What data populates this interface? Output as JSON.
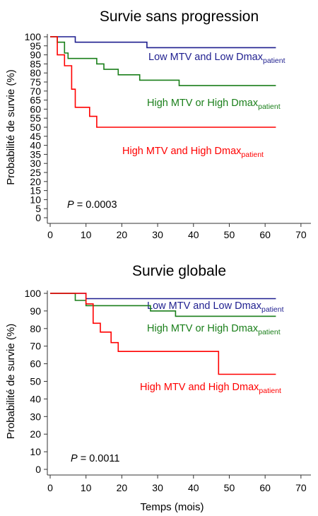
{
  "chart_data": [
    {
      "type": "line",
      "step": true,
      "title": "Survie sans progression",
      "ylabel": "Probabilité de survie (%)",
      "xlabel": "",
      "xlim": [
        0,
        72
      ],
      "ylim": [
        0,
        100
      ],
      "xticks": [
        "0",
        "10",
        "20",
        "30",
        "40",
        "50",
        "60",
        "70"
      ],
      "yticks": [
        "0",
        "5",
        "10",
        "15",
        "20",
        "25",
        "30",
        "35",
        "40",
        "45",
        "50",
        "55",
        "60",
        "65",
        "70",
        "75",
        "80",
        "85",
        "90",
        "95",
        "100"
      ],
      "grid": false,
      "annotation": {
        "p_label": "P",
        "p_value": "= 0.0003"
      },
      "series": [
        {
          "name": "Low MTV and Low Dmax",
          "name_sub": "patient",
          "color": "#1f1f8f",
          "points": [
            [
              0,
              100
            ],
            [
              7,
              100
            ],
            [
              7,
              97
            ],
            [
              27,
              97
            ],
            [
              27,
              94
            ],
            [
              63,
              94
            ]
          ]
        },
        {
          "name": "High MTV or High Dmax",
          "name_sub": "patient",
          "color": "#1a7f1a",
          "points": [
            [
              0,
              100
            ],
            [
              2,
              100
            ],
            [
              2,
              97
            ],
            [
              4,
              97
            ],
            [
              4,
              91
            ],
            [
              5,
              91
            ],
            [
              5,
              88
            ],
            [
              13,
              88
            ],
            [
              13,
              85
            ],
            [
              15,
              85
            ],
            [
              15,
              82
            ],
            [
              19,
              82
            ],
            [
              19,
              79
            ],
            [
              25,
              79
            ],
            [
              25,
              76
            ],
            [
              36,
              76
            ],
            [
              36,
              73
            ],
            [
              63,
              73
            ]
          ]
        },
        {
          "name": "High MTV and High Dmax",
          "name_sub": "patient",
          "color": "#ff0000",
          "points": [
            [
              0,
              100
            ],
            [
              2,
              100
            ],
            [
              2,
              90
            ],
            [
              4,
              90
            ],
            [
              4,
              84
            ],
            [
              6,
              84
            ],
            [
              6,
              71
            ],
            [
              7,
              71
            ],
            [
              7,
              61
            ],
            [
              11,
              61
            ],
            [
              11,
              56
            ],
            [
              13,
              56
            ],
            [
              13,
              50
            ],
            [
              63,
              50
            ]
          ]
        }
      ]
    },
    {
      "type": "line",
      "step": true,
      "title": "Survie globale",
      "ylabel": "Probabilité de survie (%)",
      "xlabel": "Temps (mois)",
      "xlim": [
        0,
        72
      ],
      "ylim": [
        0,
        100
      ],
      "xticks": [
        "0",
        "10",
        "20",
        "30",
        "40",
        "50",
        "60",
        "70"
      ],
      "yticks": [
        "0",
        "10",
        "20",
        "30",
        "40",
        "50",
        "60",
        "70",
        "80",
        "90",
        "100"
      ],
      "grid": false,
      "annotation": {
        "p_label": "P",
        "p_value": "= 0.0011"
      },
      "series": [
        {
          "name": "Low MTV and Low Dmax",
          "name_sub": "patient",
          "color": "#1f1f8f",
          "points": [
            [
              0,
              100
            ],
            [
              10,
              100
            ],
            [
              10,
              97
            ],
            [
              63,
              97
            ]
          ]
        },
        {
          "name": "High MTV or High Dmax",
          "name_sub": "patient",
          "color": "#1a7f1a",
          "points": [
            [
              0,
              100
            ],
            [
              7,
              100
            ],
            [
              7,
              96
            ],
            [
              10,
              96
            ],
            [
              10,
              93
            ],
            [
              28,
              93
            ],
            [
              28,
              90
            ],
            [
              35,
              90
            ],
            [
              35,
              87
            ],
            [
              63,
              87
            ]
          ]
        },
        {
          "name": "High MTV and High Dmax",
          "name_sub": "patient",
          "color": "#ff0000",
          "points": [
            [
              0,
              100
            ],
            [
              10,
              100
            ],
            [
              10,
              94
            ],
            [
              12,
              94
            ],
            [
              12,
              83
            ],
            [
              14,
              83
            ],
            [
              14,
              78
            ],
            [
              17,
              78
            ],
            [
              17,
              72
            ],
            [
              19,
              72
            ],
            [
              19,
              67
            ],
            [
              47,
              67
            ],
            [
              47,
              54
            ],
            [
              63,
              54
            ]
          ]
        }
      ]
    }
  ]
}
